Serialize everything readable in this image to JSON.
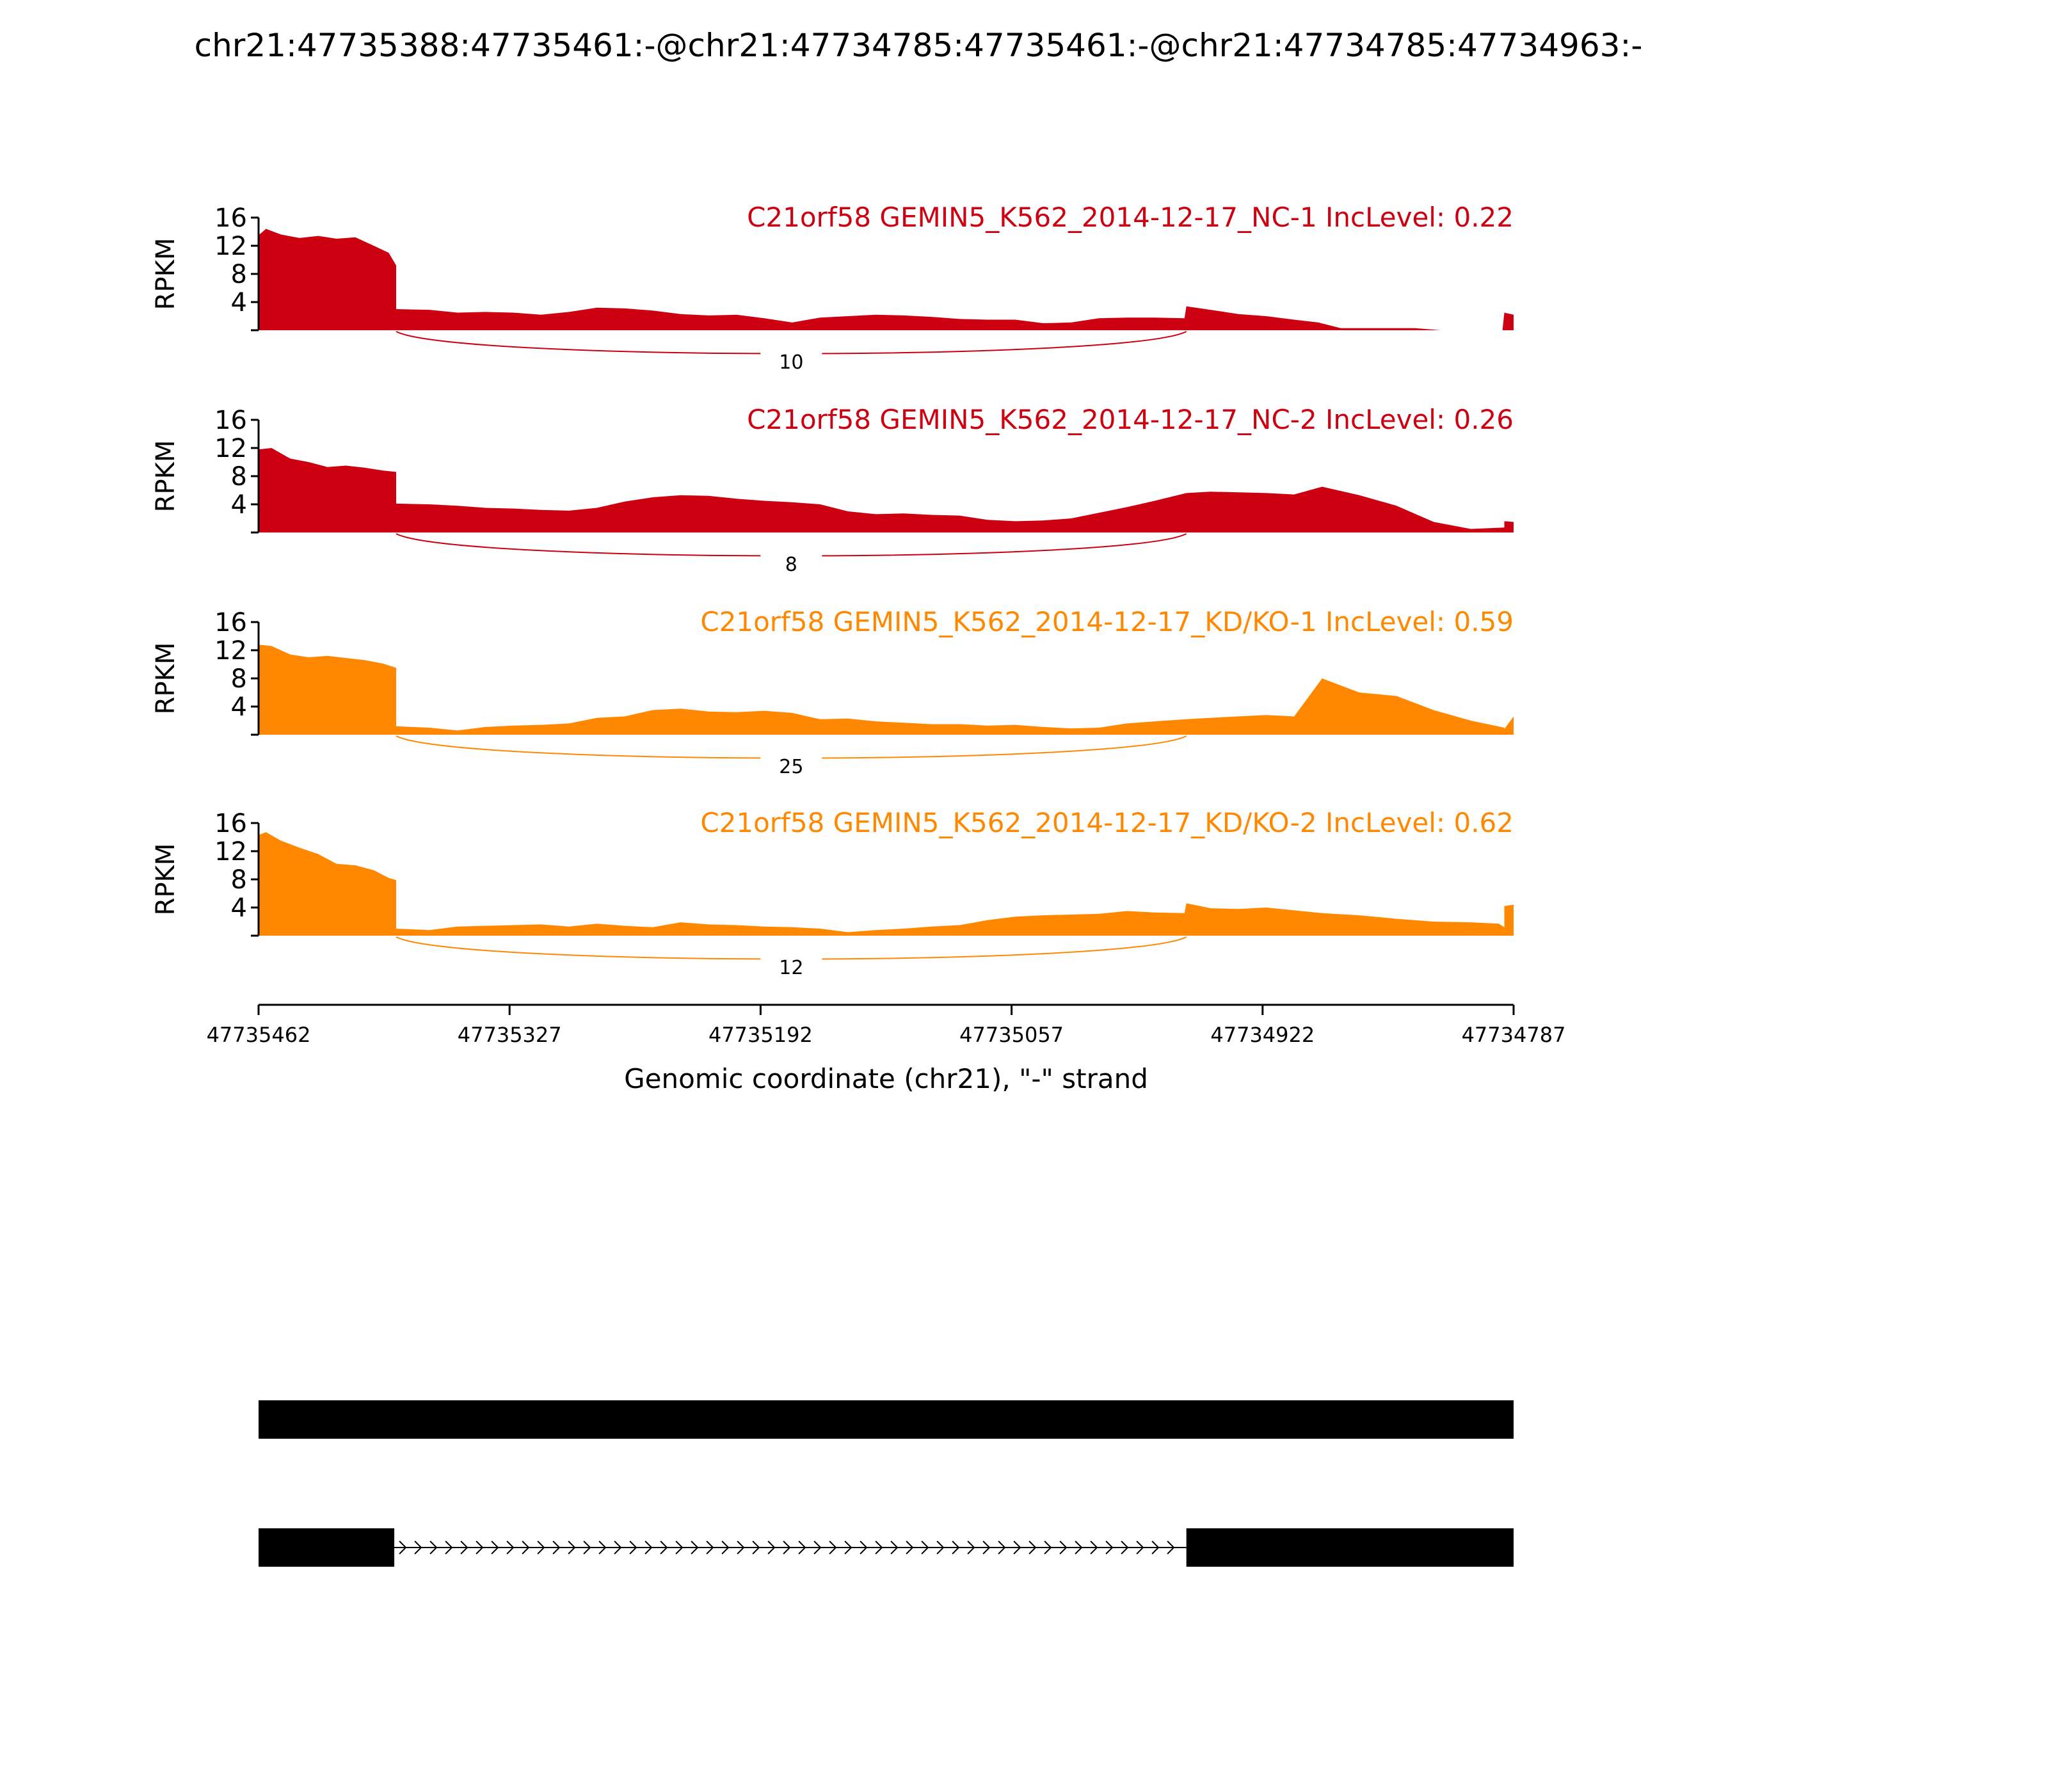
{
  "figure": {
    "title": "chr21:47735388:47735461:-@chr21:47734785:47735461:-@chr21:47734785:47734963:-"
  },
  "chart_data": {
    "type": "area",
    "title": "chr21:47735388:47735461:-@chr21:47734785:47735461:-@chr21:47734785:47734963:-",
    "xlabel": "Genomic coordinate (chr21), \"-\" strand",
    "ylabel": "RPKM",
    "xlim": [
      47735462,
      47734787
    ],
    "ylim": [
      0,
      16
    ],
    "x_reversed": true,
    "x_ticks": [
      47735462,
      47735327,
      47735192,
      47735057,
      47734922,
      47734787
    ],
    "y_ticks": [
      4,
      8,
      12,
      16
    ],
    "grid": false,
    "colors": {
      "NC": "#cc0011",
      "KD": "#ff8800",
      "gene": "#000000"
    },
    "exon_boundaries": [
      47735388,
      47734963
    ],
    "series": [
      {
        "name": "C21orf58 GEMIN5_K562_2014-12-17_NC-1 IncLevel: 0.22",
        "color": "#cc0011",
        "junction_count": "10",
        "x": [
          47735462,
          47735458,
          47735450,
          47735440,
          47735430,
          47735420,
          47735410,
          47735400,
          47735392,
          47735388,
          47735388,
          47735370,
          47735355,
          47735340,
          47735325,
          47735310,
          47735295,
          47735280,
          47735265,
          47735250,
          47735235,
          47735220,
          47735205,
          47735190,
          47735175,
          47735160,
          47735145,
          47735130,
          47735115,
          47735100,
          47735085,
          47735070,
          47735055,
          47735040,
          47735025,
          47735010,
          47734995,
          47734980,
          47734964,
          47734963,
          47734950,
          47734935,
          47734920,
          47734905,
          47734892,
          47734880,
          47734860,
          47734840,
          47734826,
          47734800,
          47734793,
          47734792,
          47734787
        ],
        "values": [
          13.5,
          14.4,
          13.6,
          13.1,
          13.4,
          13.0,
          13.2,
          12.0,
          11.0,
          9.2,
          3.0,
          2.9,
          2.5,
          2.6,
          2.5,
          2.2,
          2.6,
          3.2,
          3.1,
          2.8,
          2.3,
          2.1,
          2.2,
          1.7,
          1.1,
          1.8,
          2.0,
          2.2,
          2.1,
          1.9,
          1.6,
          1.5,
          1.5,
          1.0,
          1.1,
          1.7,
          1.8,
          1.8,
          1.7,
          3.4,
          2.9,
          2.3,
          2.0,
          1.5,
          1.1,
          0.3,
          0.3,
          0.3,
          0.0,
          0.0,
          0.0,
          2.5,
          2.2
        ]
      },
      {
        "name": "C21orf58 GEMIN5_K562_2014-12-17_NC-2 IncLevel: 0.26",
        "color": "#cc0011",
        "junction_count": "8",
        "x": [
          47735462,
          47735455,
          47735445,
          47735435,
          47735425,
          47735415,
          47735405,
          47735395,
          47735388,
          47735388,
          47735370,
          47735355,
          47735340,
          47735325,
          47735310,
          47735295,
          47735280,
          47735265,
          47735250,
          47735235,
          47735220,
          47735205,
          47735190,
          47735175,
          47735160,
          47735145,
          47735130,
          47735115,
          47735100,
          47735085,
          47735070,
          47735055,
          47735040,
          47735025,
          47735010,
          47734995,
          47734980,
          47734963,
          47734950,
          47734935,
          47734920,
          47734905,
          47734890,
          47734870,
          47734850,
          47734830,
          47734810,
          47734792,
          47734792,
          47734787
        ],
        "values": [
          11.8,
          12.0,
          10.5,
          10.0,
          9.3,
          9.5,
          9.2,
          8.8,
          8.6,
          4.1,
          4.0,
          3.8,
          3.5,
          3.4,
          3.2,
          3.1,
          3.5,
          4.4,
          5.0,
          5.3,
          5.2,
          4.8,
          4.5,
          4.3,
          4.0,
          3.0,
          2.6,
          2.7,
          2.5,
          2.4,
          1.8,
          1.6,
          1.7,
          2.0,
          2.8,
          3.6,
          4.5,
          5.6,
          5.8,
          5.7,
          5.6,
          5.4,
          6.5,
          5.3,
          3.8,
          1.5,
          0.5,
          0.7,
          1.6,
          1.5
        ]
      },
      {
        "name": "C21orf58 GEMIN5_K562_2014-12-17_KD/KO-1 IncLevel: 0.59",
        "color": "#ff8800",
        "junction_count": "25",
        "x": [
          47735462,
          47735455,
          47735445,
          47735435,
          47735425,
          47735415,
          47735405,
          47735395,
          47735388,
          47735388,
          47735370,
          47735355,
          47735340,
          47735325,
          47735310,
          47735295,
          47735280,
          47735265,
          47735250,
          47735235,
          47735220,
          47735205,
          47735190,
          47735175,
          47735160,
          47735145,
          47735130,
          47735115,
          47735100,
          47735085,
          47735070,
          47735055,
          47735040,
          47735025,
          47735010,
          47734995,
          47734980,
          47734963,
          47734950,
          47734935,
          47734920,
          47734905,
          47734890,
          47734870,
          47734850,
          47734830,
          47734810,
          47734792,
          47734792,
          47734787
        ],
        "values": [
          12.8,
          12.6,
          11.4,
          11.0,
          11.2,
          10.9,
          10.6,
          10.1,
          9.5,
          1.2,
          1.0,
          0.6,
          1.1,
          1.3,
          1.4,
          1.6,
          2.4,
          2.6,
          3.5,
          3.7,
          3.3,
          3.2,
          3.4,
          3.1,
          2.2,
          2.3,
          1.9,
          1.7,
          1.5,
          1.5,
          1.3,
          1.4,
          1.1,
          0.9,
          1.0,
          1.6,
          1.9,
          2.2,
          2.4,
          2.6,
          2.8,
          2.6,
          8.0,
          6.0,
          5.5,
          3.5,
          2.0,
          1.0,
          0.8,
          2.6
        ]
      },
      {
        "name": "C21orf58 GEMIN5_K562_2014-12-17_KD/KO-2 IncLevel: 0.62",
        "color": "#ff8800",
        "junction_count": "12",
        "x": [
          47735462,
          47735458,
          47735450,
          47735440,
          47735430,
          47735420,
          47735410,
          47735400,
          47735392,
          47735388,
          47735388,
          47735370,
          47735355,
          47735340,
          47735325,
          47735310,
          47735295,
          47735280,
          47735265,
          47735250,
          47735235,
          47735220,
          47735205,
          47735190,
          47735175,
          47735160,
          47735145,
          47735130,
          47735115,
          47735100,
          47735085,
          47735070,
          47735055,
          47735040,
          47735025,
          47735010,
          47734995,
          47734980,
          47734964,
          47734963,
          47734950,
          47734935,
          47734920,
          47734905,
          47734890,
          47734870,
          47734850,
          47734830,
          47734810,
          47734795,
          47734792,
          47734792,
          47734787
        ],
        "values": [
          14.3,
          14.7,
          13.5,
          12.5,
          11.6,
          10.2,
          10.0,
          9.3,
          8.2,
          7.9,
          1.0,
          0.8,
          1.3,
          1.4,
          1.5,
          1.6,
          1.3,
          1.7,
          1.4,
          1.2,
          1.9,
          1.6,
          1.5,
          1.3,
          1.2,
          1.0,
          0.5,
          0.8,
          1.0,
          1.3,
          1.5,
          2.2,
          2.7,
          2.9,
          3.0,
          3.1,
          3.5,
          3.3,
          3.2,
          4.6,
          3.9,
          3.8,
          4.0,
          3.6,
          3.2,
          2.9,
          2.4,
          2.0,
          1.9,
          1.7,
          1.2,
          4.2,
          4.4
        ]
      }
    ],
    "gene_models": [
      {
        "exons": [
          [
            47735462,
            47734787
          ]
        ]
      },
      {
        "exons": [
          [
            47735462,
            47735389
          ],
          [
            47734963,
            47734787
          ]
        ]
      }
    ]
  }
}
